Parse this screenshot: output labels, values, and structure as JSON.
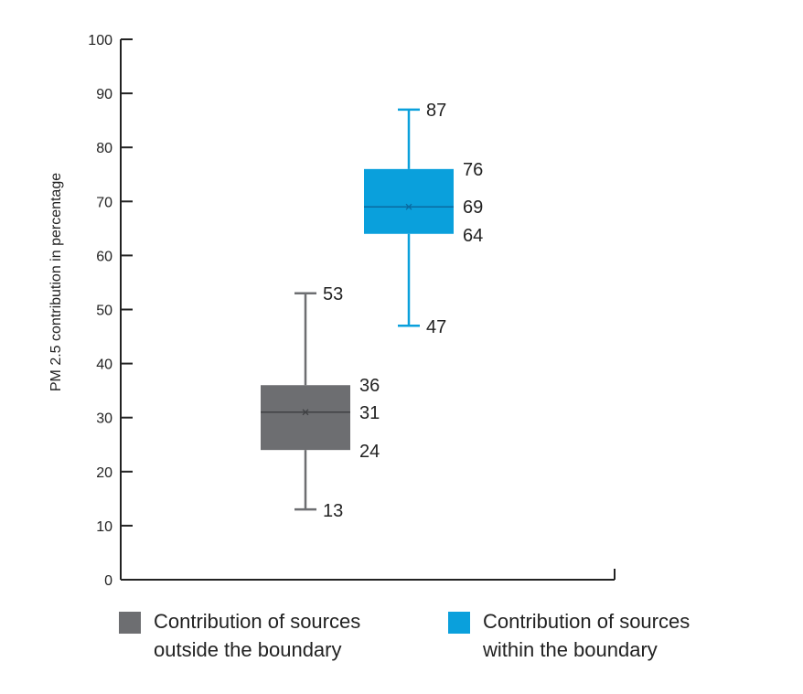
{
  "chart_data": {
    "type": "box",
    "ylabel": "PM 2.5 contribution in percentage",
    "ylim": [
      0,
      100
    ],
    "yticks": [
      0,
      10,
      20,
      30,
      40,
      50,
      60,
      70,
      80,
      90,
      100
    ],
    "grid": false,
    "series": [
      {
        "name": "Contribution of sources outside the boundary",
        "legend_lines": [
          "Contribution of sources",
          "outside the boundary"
        ],
        "color": "#6d6e71",
        "whisker_color": "#6d6e71",
        "min": 13,
        "q1": 24,
        "median": 31,
        "q3": 36,
        "max": 53,
        "labels": {
          "min": "13",
          "q1": "24",
          "median": "31",
          "q3": "36",
          "max": "53"
        }
      },
      {
        "name": "Contribution of sources within the boundary",
        "legend_lines": [
          "Contribution of sources",
          "within the boundary"
        ],
        "color": "#0aa0dc",
        "whisker_color": "#0aa0dc",
        "min": 47,
        "q1": 64,
        "median": 69,
        "q3": 76,
        "max": 87,
        "labels": {
          "min": "47",
          "q1": "64",
          "median": "69",
          "q3": "76",
          "max": "87"
        }
      }
    ],
    "legend_position": "bottom"
  }
}
